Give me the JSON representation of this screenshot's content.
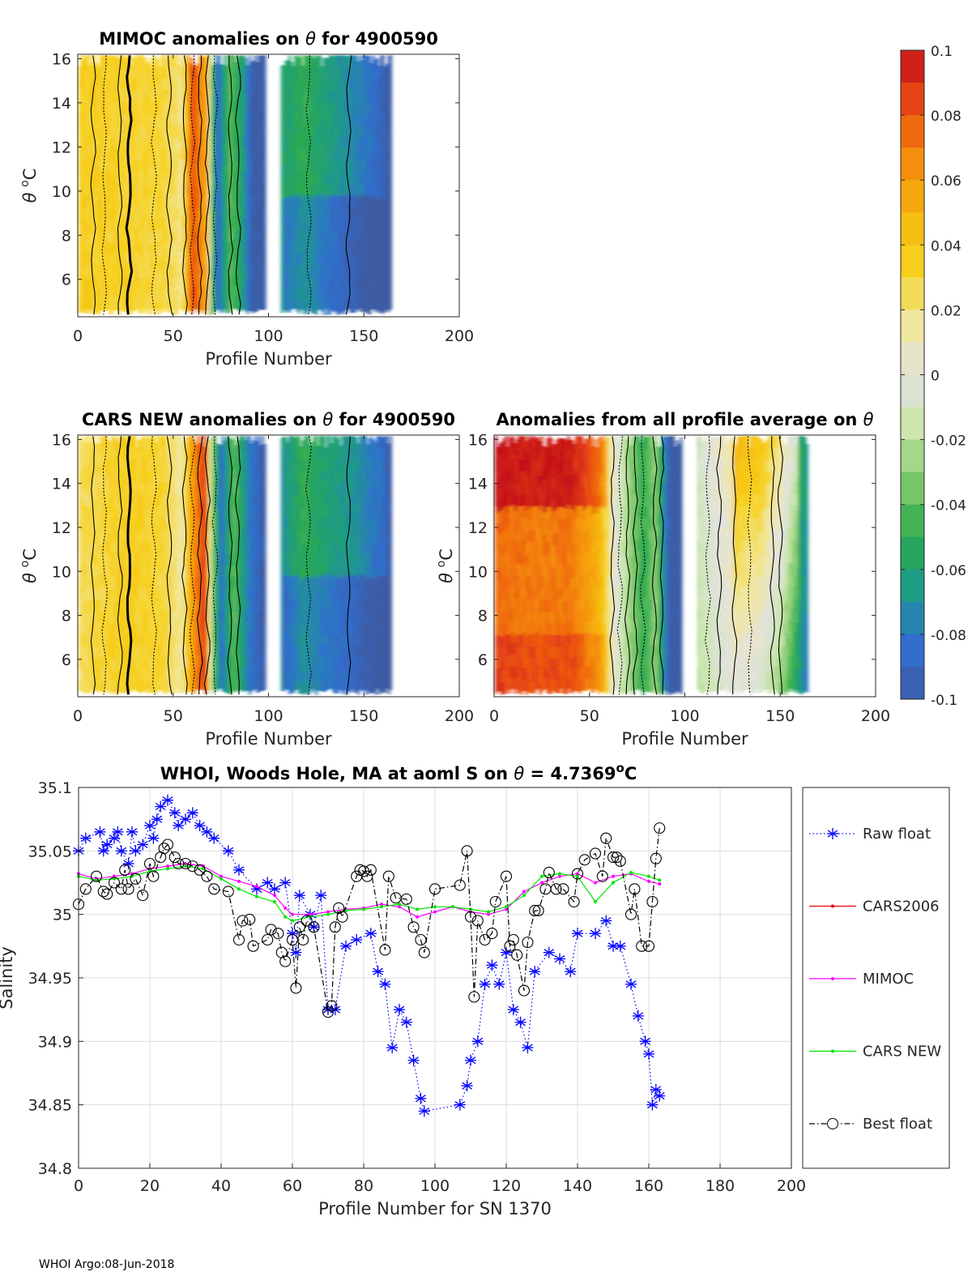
{
  "footer": "WHOI Argo:08-Jun-2018",
  "colorbar": {
    "ticks": [
      0.1,
      0.08,
      0.06,
      0.04,
      0.02,
      0,
      -0.02,
      -0.04,
      -0.06,
      -0.08,
      -0.1
    ],
    "tick_labels": [
      "0.1",
      "0.08",
      "0.06",
      "0.04",
      "0.02",
      "0",
      "-0.02",
      "-0.04",
      "-0.06",
      "-0.08",
      "-0.1"
    ],
    "range": [
      -0.1,
      0.1
    ],
    "colors": [
      "#3e5ba3",
      "#2f6fd0",
      "#1e9a8a",
      "#2aaa4c",
      "#7ec86c",
      "#c9e6a8",
      "#e2e2e2",
      "#f2e79a",
      "#f6d11c",
      "#f6b40e",
      "#f58a0c",
      "#ea4a12",
      "#c40f1a"
    ]
  },
  "chart_data": [
    {
      "type": "heatmap",
      "title_prefix": "MIMOC anomalies on",
      "title_symbol": "θ",
      "title_suffix": " for 4900590",
      "xlabel": "Profile Number",
      "ylabel_theta": "θ",
      "ylabel_unit": "C",
      "ylabel_sup": "o",
      "xlim": [
        0,
        200
      ],
      "ylim": [
        4.3,
        16.2
      ],
      "xticks": [
        0,
        50,
        100,
        150,
        200
      ],
      "yticks": [
        6,
        8,
        10,
        12,
        14,
        16
      ],
      "profile_range": [
        1,
        164
      ],
      "gap": [
        98,
        107
      ],
      "profile_anomaly": [
        [
          0,
          0.035
        ],
        [
          28,
          0.032
        ],
        [
          45,
          0.03
        ],
        [
          55,
          0.02
        ],
        [
          60,
          0.085
        ],
        [
          68,
          0.05
        ],
        [
          70,
          -0.03
        ],
        [
          73,
          -0.09
        ],
        [
          80,
          -0.04
        ],
        [
          86,
          -0.06
        ],
        [
          92,
          -0.1
        ],
        [
          98,
          -0.1
        ],
        [
          107,
          -0.06
        ],
        [
          120,
          -0.05
        ],
        [
          128,
          -0.06
        ],
        [
          140,
          -0.07
        ],
        [
          155,
          -0.085
        ],
        [
          164,
          -0.1
        ]
      ]
    },
    {
      "type": "heatmap",
      "title_prefix": "CARS NEW anomalies on",
      "title_symbol": "θ",
      "title_suffix": " for 4900590",
      "xlabel": "Profile Number",
      "ylabel_theta": "θ",
      "ylabel_unit": "C",
      "ylabel_sup": "o",
      "xlim": [
        0,
        200
      ],
      "ylim": [
        4.3,
        16.2
      ],
      "xticks": [
        0,
        50,
        100,
        150,
        200
      ],
      "yticks": [
        6,
        8,
        10,
        12,
        14,
        16
      ],
      "profile_range": [
        1,
        164
      ],
      "gap": [
        98,
        107
      ],
      "profile_anomaly": [
        [
          0,
          0.025
        ],
        [
          25,
          0.035
        ],
        [
          45,
          0.03
        ],
        [
          55,
          0.015
        ],
        [
          60,
          0.06
        ],
        [
          67,
          0.09
        ],
        [
          70,
          -0.02
        ],
        [
          75,
          -0.085
        ],
        [
          82,
          -0.04
        ],
        [
          90,
          -0.08
        ],
        [
          98,
          -0.1
        ],
        [
          107,
          -0.07
        ],
        [
          118,
          -0.05
        ],
        [
          130,
          -0.06
        ],
        [
          145,
          -0.07
        ],
        [
          160,
          -0.085
        ],
        [
          164,
          -0.1
        ]
      ]
    },
    {
      "type": "heatmap",
      "title_prefix": "Anomalies from all profile average on",
      "title_symbol": "θ",
      "title_suffix": "",
      "xlabel": "Profile Number",
      "ylabel_theta": "θ",
      "ylabel_unit": "C",
      "ylabel_sup": "o",
      "xlim": [
        0,
        200
      ],
      "ylim": [
        4.3,
        16.2
      ],
      "xticks": [
        0,
        50,
        100,
        150,
        200
      ],
      "yticks": [
        6,
        8,
        10,
        12,
        14,
        16
      ],
      "profile_range": [
        1,
        164
      ],
      "gap": [
        98,
        107
      ],
      "profile_anomaly": [
        [
          0,
          0.075
        ],
        [
          20,
          0.07
        ],
        [
          40,
          0.072
        ],
        [
          55,
          0.05
        ],
        [
          62,
          0.01
        ],
        [
          66,
          -0.01
        ],
        [
          72,
          -0.03
        ],
        [
          78,
          -0.05
        ],
        [
          85,
          -0.03
        ],
        [
          92,
          -0.1
        ],
        [
          98,
          -0.1
        ],
        [
          107,
          -0.02
        ],
        [
          125,
          0.0
        ],
        [
          140,
          -0.01
        ],
        [
          150,
          -0.03
        ],
        [
          164,
          -0.08
        ]
      ]
    },
    {
      "type": "line",
      "title_prefix": "WHOI, Woods Hole, MA at aoml S on",
      "title_symbol": "θ",
      "title_suffix": " = 4.7369",
      "title_sup": "o",
      "title_unit": "C",
      "xlabel": "Profile Number for SN 1370",
      "ylabel": "Salinity",
      "xlim": [
        0,
        200
      ],
      "ylim": [
        34.8,
        35.1
      ],
      "xticks": [
        0,
        20,
        40,
        60,
        80,
        100,
        120,
        140,
        160,
        180,
        200
      ],
      "yticks": [
        34.8,
        34.85,
        34.9,
        34.95,
        35,
        35.05,
        35.1
      ],
      "ytick_labels": [
        "34.8",
        "34.85",
        "34.9",
        "34.95",
        "35",
        "35.05",
        "35.1"
      ],
      "legend_position": "right",
      "series": [
        {
          "name": "Raw float",
          "color": "#0000ff",
          "marker": "star",
          "linestyle": "dotted",
          "x": [
            0,
            2,
            6,
            7,
            8,
            10,
            11,
            12,
            14,
            15,
            16,
            18,
            20,
            21,
            22,
            23,
            25,
            27,
            28,
            30,
            32,
            34,
            36,
            38,
            42,
            45,
            50,
            53,
            55,
            58,
            60,
            61,
            62,
            65,
            66,
            68,
            70,
            72,
            75,
            78,
            82,
            84,
            86,
            88,
            90,
            92,
            94,
            96,
            97,
            107,
            109,
            110,
            112,
            114,
            116,
            118,
            120,
            122,
            124,
            126,
            128,
            132,
            135,
            138,
            140,
            145,
            148,
            150,
            152,
            155,
            157,
            159,
            160,
            161,
            162,
            163
          ],
          "y": [
            35.05,
            35.06,
            35.065,
            35.05,
            35.055,
            35.06,
            35.065,
            35.05,
            35.04,
            35.065,
            35.05,
            35.055,
            35.07,
            35.06,
            35.075,
            35.085,
            35.09,
            35.08,
            35.07,
            35.075,
            35.08,
            35.07,
            35.065,
            35.06,
            35.05,
            35.035,
            35.02,
            35.025,
            35.02,
            35.025,
            34.985,
            34.97,
            35.015,
            35.0,
            34.99,
            35.015,
            34.925,
            34.925,
            34.975,
            34.98,
            34.985,
            34.955,
            34.945,
            34.895,
            34.925,
            34.915,
            34.885,
            34.855,
            34.845,
            34.85,
            34.865,
            34.885,
            34.9,
            34.945,
            34.96,
            34.945,
            34.97,
            34.925,
            34.915,
            34.895,
            34.955,
            34.97,
            34.965,
            34.955,
            34.985,
            34.985,
            34.995,
            34.975,
            34.975,
            34.945,
            34.92,
            34.9,
            34.89,
            34.85,
            34.862,
            34.857
          ]
        },
        {
          "name": "CARS2006",
          "color": "#e8000b",
          "marker": "dot",
          "linestyle": "solid",
          "x": [],
          "y": []
        },
        {
          "name": "MIMOC",
          "color": "#ff00ff",
          "marker": "dot",
          "linestyle": "solid",
          "x": [
            0,
            5,
            10,
            15,
            20,
            25,
            30,
            35,
            40,
            45,
            50,
            55,
            58,
            60,
            65,
            70,
            75,
            80,
            85,
            90,
            95,
            100,
            105,
            110,
            115,
            120,
            125,
            130,
            135,
            140,
            145,
            150,
            155,
            160,
            163
          ],
          "y": [
            35.032,
            35.028,
            35.03,
            35.032,
            35.036,
            35.038,
            35.04,
            35.038,
            35.03,
            35.026,
            35.022,
            35.015,
            35.005,
            35.0,
            35.0,
            35.002,
            35.004,
            35.005,
            35.008,
            35.006,
            34.998,
            35.002,
            35.006,
            35.002,
            35.0,
            35.004,
            35.018,
            35.025,
            35.03,
            35.032,
            35.025,
            35.03,
            35.032,
            35.026,
            35.024
          ]
        },
        {
          "name": "CARS NEW",
          "color": "#00e600",
          "marker": "dot",
          "linestyle": "solid",
          "x": [
            0,
            5,
            10,
            15,
            20,
            25,
            30,
            35,
            40,
            45,
            50,
            55,
            58,
            60,
            65,
            70,
            75,
            80,
            85,
            90,
            95,
            100,
            105,
            110,
            115,
            120,
            125,
            130,
            135,
            140,
            145,
            150,
            155,
            160,
            163
          ],
          "y": [
            35.03,
            35.027,
            35.028,
            35.03,
            35.034,
            35.036,
            35.038,
            35.036,
            35.028,
            35.02,
            35.014,
            35.01,
            34.998,
            34.995,
            34.998,
            35.0,
            35.003,
            35.004,
            35.006,
            35.008,
            35.004,
            35.006,
            35.006,
            35.004,
            35.002,
            35.006,
            35.015,
            35.03,
            35.032,
            35.03,
            35.01,
            35.025,
            35.033,
            35.03,
            35.027
          ]
        },
        {
          "name": "Best float",
          "color": "#000000",
          "marker": "circle",
          "linestyle": "dashdot",
          "x": [
            0,
            2,
            5,
            7,
            8,
            10,
            12,
            13,
            14,
            16,
            18,
            20,
            21,
            23,
            24,
            25,
            27,
            28,
            30,
            32,
            34,
            36,
            38,
            42,
            45,
            46,
            48,
            49,
            53,
            54,
            56,
            57,
            58,
            60,
            61,
            62,
            63,
            64,
            66,
            70,
            71,
            72,
            73,
            74,
            78,
            79,
            80,
            81,
            82,
            86,
            87,
            89,
            92,
            94,
            96,
            97,
            100,
            107,
            109,
            110,
            111,
            112,
            114,
            116,
            117,
            120,
            121,
            122,
            123,
            125,
            126,
            128,
            129,
            131,
            132,
            134,
            136,
            139,
            140,
            142,
            145,
            147,
            148,
            150,
            151,
            152,
            155,
            156,
            158,
            160,
            161,
            162,
            163
          ],
          "y": [
            35.008,
            35.02,
            35.03,
            35.018,
            35.016,
            35.025,
            35.02,
            35.035,
            35.02,
            35.028,
            35.015,
            35.04,
            35.03,
            35.045,
            35.052,
            35.055,
            35.045,
            35.04,
            35.04,
            35.038,
            35.035,
            35.03,
            35.02,
            35.018,
            34.98,
            34.995,
            34.996,
            34.975,
            34.98,
            34.988,
            34.985,
            34.97,
            34.963,
            34.98,
            34.942,
            34.99,
            34.98,
            34.995,
            34.99,
            34.923,
            34.928,
            34.99,
            35.005,
            34.998,
            35.03,
            35.035,
            35.034,
            35.03,
            35.035,
            34.972,
            35.03,
            35.013,
            35.012,
            34.99,
            34.98,
            34.97,
            35.02,
            35.023,
            35.05,
            34.998,
            34.935,
            34.995,
            34.98,
            34.985,
            35.01,
            35.03,
            34.975,
            34.98,
            34.968,
            34.94,
            34.978,
            35.003,
            35.003,
            35.02,
            35.033,
            35.02,
            35.02,
            35.01,
            35.032,
            35.043,
            35.048,
            35.03,
            35.06,
            35.045,
            35.045,
            35.042,
            35.0,
            35.02,
            34.975,
            34.975,
            35.01,
            35.044,
            35.068
          ]
        }
      ]
    }
  ]
}
